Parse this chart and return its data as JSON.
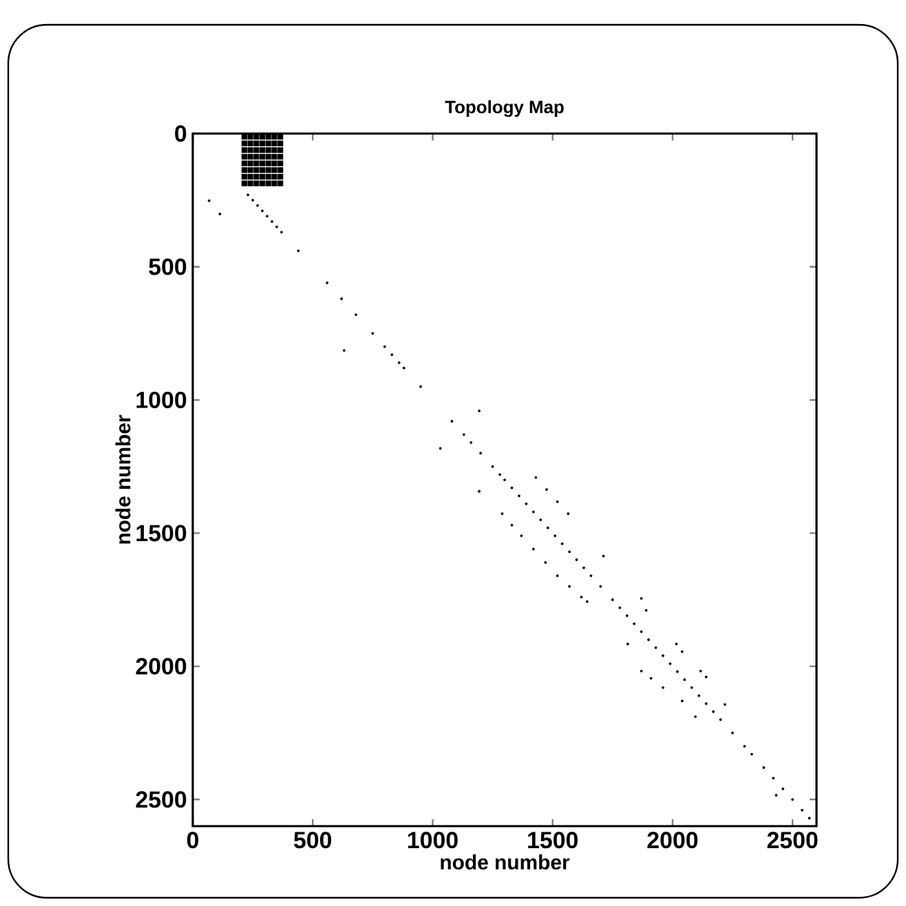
{
  "chart_data": {
    "type": "scatter",
    "title": "Topology Map",
    "xlabel": "node number",
    "ylabel": "node number",
    "xlim": [
      0,
      2600
    ],
    "ylim": [
      2600,
      0
    ],
    "xticks": [
      0,
      500,
      1000,
      1500,
      2000,
      2500
    ],
    "yticks": [
      0,
      500,
      1000,
      1500,
      2000,
      2500
    ],
    "series": [
      {
        "color": "#000000",
        "marker": "square",
        "x": [
          215,
          240,
          265,
          290,
          315,
          340,
          365,
          215,
          240,
          265,
          290,
          315,
          340,
          365,
          215,
          240,
          265,
          290,
          315,
          340,
          365,
          215,
          240,
          265,
          290,
          315,
          340,
          365,
          215,
          240,
          265,
          290,
          315,
          340,
          365,
          215,
          240,
          265,
          290,
          315,
          340,
          365,
          215,
          240,
          265,
          290,
          315,
          340,
          365,
          215,
          240,
          265,
          290,
          315,
          340,
          365
        ],
        "values": [
          12,
          12,
          12,
          12,
          12,
          12,
          12,
          37,
          37,
          37,
          37,
          37,
          37,
          37,
          62,
          62,
          62,
          62,
          62,
          62,
          62,
          87,
          87,
          87,
          87,
          87,
          87,
          87,
          112,
          112,
          112,
          112,
          112,
          112,
          112,
          137,
          137,
          137,
          137,
          137,
          137,
          137,
          162,
          162,
          162,
          162,
          162,
          162,
          162,
          187,
          187,
          187,
          187,
          187,
          187,
          187
        ]
      },
      {
        "color": "#000000",
        "marker": "circle",
        "x": [
          230,
          250,
          270,
          290,
          310,
          330,
          350,
          370,
          440,
          560,
          620,
          680,
          750,
          800,
          830,
          860,
          880,
          950,
          1080,
          1130,
          1160,
          1200,
          1250,
          1280,
          1300,
          1330,
          1360,
          1390,
          1420,
          1450,
          1480,
          1510,
          1540,
          1570,
          1600,
          1630,
          1660,
          1700,
          1750,
          1780,
          1810,
          1840,
          1870,
          1900,
          1930,
          1960,
          1990,
          2020,
          2050,
          2080,
          2110,
          2140,
          2170,
          2200,
          2250,
          2300,
          2330,
          2380,
          2420,
          2460,
          2500,
          2540,
          2570,
          68,
          113,
          631,
          1032,
          1194,
          1194,
          1430,
          1475,
          1520,
          1565,
          1290,
          1330,
          1370,
          1420,
          1470,
          1520,
          1570,
          1620,
          1644,
          1712,
          1870,
          1890,
          1813,
          1870,
          1910,
          1960,
          2040,
          2095,
          2016,
          2040,
          2117,
          2140,
          2218,
          2432
        ],
        "values": [
          230,
          250,
          270,
          290,
          310,
          330,
          350,
          370,
          440,
          560,
          620,
          680,
          750,
          800,
          830,
          860,
          880,
          950,
          1080,
          1130,
          1160,
          1200,
          1250,
          1280,
          1300,
          1330,
          1360,
          1390,
          1420,
          1450,
          1480,
          1510,
          1540,
          1570,
          1600,
          1630,
          1660,
          1700,
          1750,
          1780,
          1810,
          1840,
          1870,
          1900,
          1930,
          1960,
          1990,
          2020,
          2050,
          2080,
          2110,
          2140,
          2170,
          2200,
          2250,
          2300,
          2330,
          2380,
          2420,
          2460,
          2500,
          2540,
          2570,
          252,
          302,
          814,
          1182,
          1041,
          1343,
          1291,
          1336,
          1382,
          1427,
          1427,
          1470,
          1510,
          1560,
          1610,
          1660,
          1700,
          1740,
          1757,
          1586,
          1745,
          1790,
          1916,
          2018,
          2045,
          2080,
          2130,
          2189,
          1916,
          1945,
          2018,
          2040,
          2143,
          2484
        ]
      }
    ]
  }
}
